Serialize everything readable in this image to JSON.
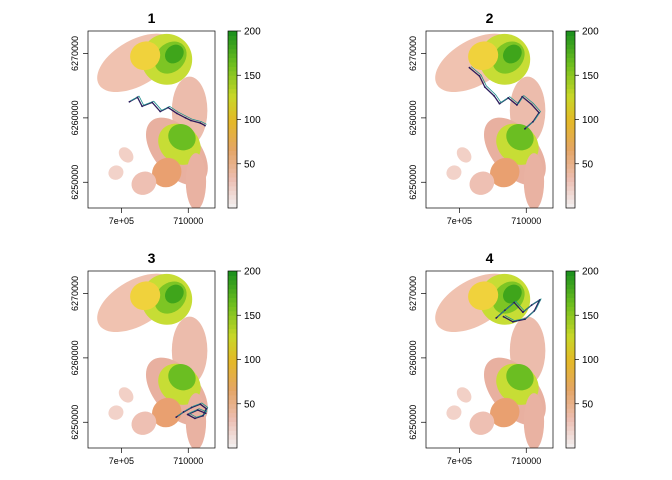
{
  "chart_data": [
    {
      "type": "heatmap",
      "title": "1",
      "xlabel": "",
      "ylabel": "",
      "x_ticks": [
        700000,
        710000
      ],
      "x_tick_labels": [
        "7e+05",
        "710000"
      ],
      "y_ticks": [
        6250000,
        6260000,
        6270000
      ],
      "y_tick_labels": [
        "6250000",
        "6260000",
        "6270000"
      ],
      "legend": {
        "placement": "right",
        "ticks": [
          50,
          100,
          150,
          200
        ],
        "tick_labels": [
          "50",
          "100",
          "150",
          "200"
        ],
        "range": [
          0,
          200
        ]
      },
      "track": {
        "line_colors": [
          "#2a1d5c",
          "#21908d"
        ],
        "points": [
          [
            701200,
            6262500
          ],
          [
            702400,
            6263200
          ],
          [
            703100,
            6261800
          ],
          [
            704600,
            6262400
          ],
          [
            705800,
            6261000
          ],
          [
            707000,
            6261600
          ],
          [
            708300,
            6260700
          ],
          [
            709600,
            6260000
          ],
          [
            710400,
            6259600
          ],
          [
            711800,
            6259200
          ],
          [
            712500,
            6258800
          ]
        ]
      }
    },
    {
      "type": "heatmap",
      "title": "2",
      "xlabel": "",
      "ylabel": "",
      "x_ticks": [
        700000,
        710000
      ],
      "x_tick_labels": [
        "7e+05",
        "710000"
      ],
      "y_ticks": [
        6250000,
        6260000,
        6270000
      ],
      "y_tick_labels": [
        "6250000",
        "6260000",
        "6270000"
      ],
      "legend": {
        "placement": "right",
        "ticks": [
          50,
          100,
          150,
          200
        ],
        "tick_labels": [
          "50",
          "100",
          "150",
          "200"
        ],
        "range": [
          0,
          200
        ]
      },
      "track": {
        "line_colors": [
          "#2a1d5c",
          "#21908d"
        ],
        "points": [
          [
            701500,
            6267800
          ],
          [
            703000,
            6266500
          ],
          [
            703800,
            6264800
          ],
          [
            705200,
            6263400
          ],
          [
            706000,
            6262200
          ],
          [
            707300,
            6263100
          ],
          [
            708600,
            6262000
          ],
          [
            709400,
            6263300
          ],
          [
            710800,
            6262100
          ],
          [
            711900,
            6260800
          ],
          [
            711000,
            6259400
          ],
          [
            709800,
            6258300
          ]
        ]
      }
    },
    {
      "type": "heatmap",
      "title": "3",
      "xlabel": "",
      "ylabel": "",
      "x_ticks": [
        700000,
        710000
      ],
      "x_tick_labels": [
        "7e+05",
        "710000"
      ],
      "y_ticks": [
        6250000,
        6260000,
        6270000
      ],
      "y_tick_labels": [
        "6250000",
        "6260000",
        "6270000"
      ],
      "legend": {
        "placement": "right",
        "ticks": [
          50,
          100,
          150,
          200
        ],
        "tick_labels": [
          "50",
          "100",
          "150",
          "200"
        ],
        "range": [
          0,
          200
        ]
      },
      "track": {
        "line_colors": [
          "#2a1d5c",
          "#21908d"
        ],
        "points": [
          [
            708200,
            6250800
          ],
          [
            709300,
            6251600
          ],
          [
            710500,
            6252300
          ],
          [
            711800,
            6252800
          ],
          [
            712700,
            6252100
          ],
          [
            712200,
            6251000
          ],
          [
            711000,
            6250600
          ],
          [
            709900,
            6251200
          ],
          [
            711400,
            6251900
          ],
          [
            712600,
            6251400
          ]
        ]
      }
    },
    {
      "type": "heatmap",
      "title": "4",
      "xlabel": "",
      "ylabel": "",
      "x_ticks": [
        700000,
        710000
      ],
      "x_tick_labels": [
        "7e+05",
        "710000"
      ],
      "y_ticks": [
        6250000,
        6260000,
        6270000
      ],
      "y_tick_labels": [
        "6250000",
        "6260000",
        "6270000"
      ],
      "legend": {
        "placement": "right",
        "ticks": [
          50,
          100,
          150,
          200
        ],
        "tick_labels": [
          "50",
          "100",
          "150",
          "200"
        ],
        "range": [
          0,
          200
        ]
      },
      "track": {
        "line_colors": [
          "#2a1d5c",
          "#21908d"
        ],
        "points": [
          [
            705500,
            6266200
          ],
          [
            706800,
            6267400
          ],
          [
            708200,
            6268600
          ],
          [
            709500,
            6267100
          ],
          [
            710800,
            6268200
          ],
          [
            712000,
            6269000
          ],
          [
            711200,
            6267300
          ],
          [
            709800,
            6266000
          ],
          [
            708000,
            6265600
          ],
          [
            706600,
            6266400
          ]
        ]
      }
    }
  ]
}
